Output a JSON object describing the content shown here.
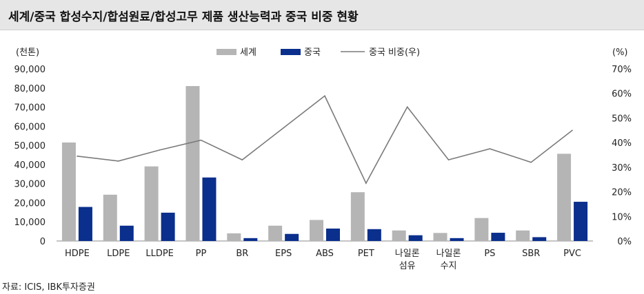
{
  "title": "세계/중국 합성수지/합섬원료/합성고무 제품 생산능력과 중국 비중 현황",
  "source": "자료: ICIS, IBK투자증권",
  "chart_data": {
    "type": "bar",
    "categories": [
      [
        "HDPE"
      ],
      [
        "LDPE"
      ],
      [
        "LLDPE"
      ],
      [
        "PP"
      ],
      [
        "BR"
      ],
      [
        "EPS"
      ],
      [
        "ABS"
      ],
      [
        "PET"
      ],
      [
        "나일론",
        "섬유"
      ],
      [
        "나일론",
        "수지"
      ],
      [
        "PS"
      ],
      [
        "SBR"
      ],
      [
        "PVC"
      ]
    ],
    "series": [
      {
        "name": "세계",
        "type": "bar",
        "axis": "left",
        "color": "#b5b5b5",
        "values": [
          51500,
          24200,
          39000,
          81000,
          4000,
          8000,
          11000,
          25500,
          5500,
          4200,
          12000,
          5500,
          45600
        ]
      },
      {
        "name": "중국",
        "type": "bar",
        "axis": "left",
        "color": "#0a2f8c",
        "values": [
          17800,
          8000,
          14800,
          33200,
          1500,
          3700,
          6500,
          6200,
          3000,
          1500,
          4300,
          2000,
          20500
        ]
      },
      {
        "name": "중국 비중(우)",
        "type": "line",
        "axis": "right",
        "color": "#7a7a7a",
        "values": [
          34.5,
          32.5,
          37,
          41,
          33,
          46,
          59,
          23.5,
          54.5,
          33,
          37.5,
          32,
          45
        ]
      }
    ],
    "yLeft": {
      "unit": "(천톤)",
      "min": 0,
      "max": 90000,
      "step": 10000,
      "ticks": [
        "0",
        "10,000",
        "20,000",
        "30,000",
        "40,000",
        "50,000",
        "60,000",
        "70,000",
        "80,000",
        "90,000"
      ]
    },
    "yRight": {
      "unit": "(%)",
      "min": 0,
      "max": 70,
      "step": 10,
      "ticks": [
        "0%",
        "10%",
        "20%",
        "30%",
        "40%",
        "50%",
        "60%",
        "70%"
      ]
    },
    "grid": false,
    "legend": "top-center"
  }
}
